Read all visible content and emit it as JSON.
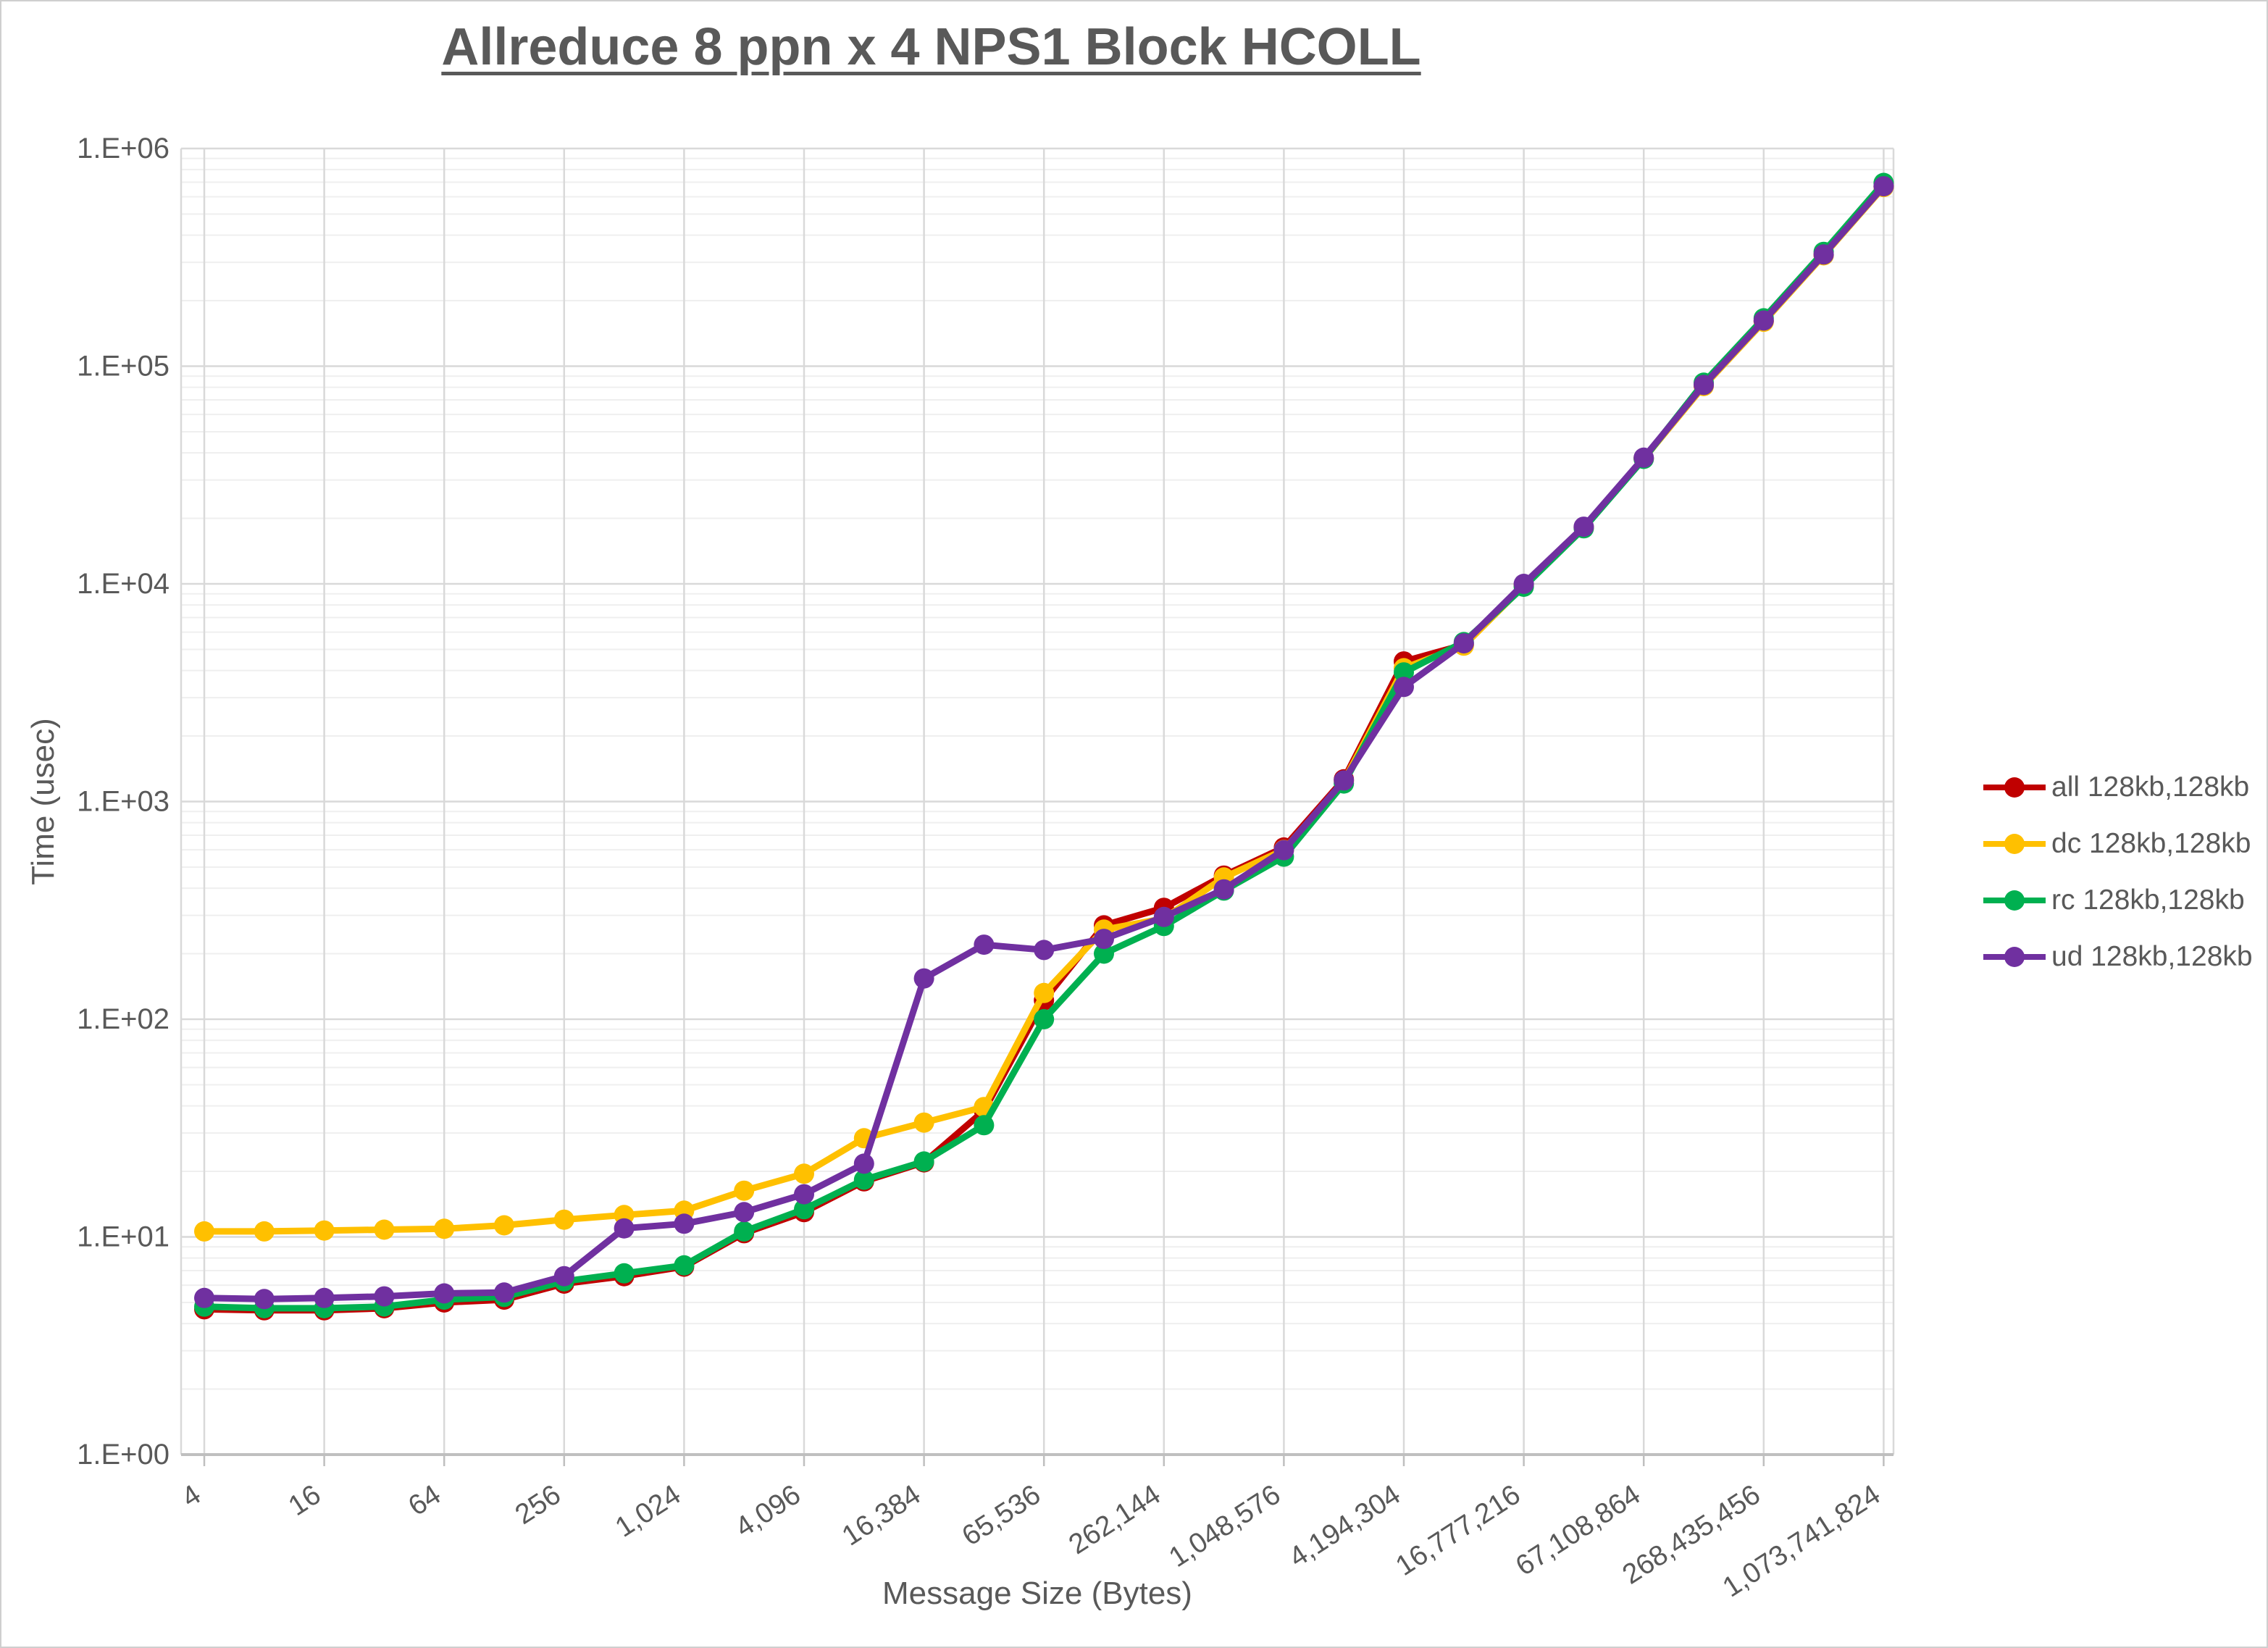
{
  "title": "Allreduce 8 ppn x 4 NPS1 Block HCOLL",
  "axes": {
    "x_label": "Message Size (Bytes)",
    "y_label": "Time (usec)",
    "x_ticks": [
      "4",
      "16",
      "64",
      "256",
      "1,024",
      "4,096",
      "16,384",
      "65,536",
      "262,144",
      "1,048,576",
      "4,194,304",
      "16,777,216",
      "67,108,864",
      "268,435,456",
      "1,073,741,824"
    ],
    "y_ticks": [
      "1.E+00",
      "1.E+01",
      "1.E+02",
      "1.E+03",
      "1.E+04",
      "1.E+05",
      "1.E+06"
    ]
  },
  "legend": [
    {
      "label": "all 128kb,128kb",
      "color": "#C00000"
    },
    {
      "label": "dc 128kb,128kb",
      "color": "#FFC000"
    },
    {
      "label": "rc 128kb,128kb",
      "color": "#00B050"
    },
    {
      "label": "ud 128kb,128kb",
      "color": "#7030A0"
    }
  ],
  "chart_data": {
    "type": "line",
    "title": "Allreduce 8 ppn x 4 NPS1 Block HCOLL",
    "xlabel": "Message Size (Bytes)",
    "ylabel": "Time (usec)",
    "x_scale": "log2",
    "y_scale": "log10",
    "ylim": [
      1,
      1000000
    ],
    "xlim": [
      4,
      1073741824
    ],
    "grid": {
      "major_color": "#D9D9D9",
      "minor_color": "#EFEFEF",
      "axis_color": "#BFBFBF"
    },
    "text_color": "#595959",
    "x": [
      4,
      8,
      16,
      32,
      64,
      128,
      256,
      512,
      1024,
      2048,
      4096,
      8192,
      16384,
      32768,
      65536,
      131072,
      262144,
      524288,
      1048576,
      2097152,
      4194304,
      8388608,
      16777216,
      33554432,
      67108864,
      134217728,
      268435456,
      536870912,
      1073741824
    ],
    "series": [
      {
        "name": "all 128kb,128kb",
        "color": "#C00000",
        "values": [
          4.65,
          4.6,
          4.6,
          4.7,
          5.0,
          5.15,
          6.1,
          6.6,
          7.3,
          10.4,
          13.0,
          18.0,
          22.0,
          38.0,
          122,
          270,
          325,
          457,
          615,
          1265,
          4400,
          5250,
          9900,
          18200,
          37800,
          81500,
          161000,
          324000,
          668000
        ]
      },
      {
        "name": "dc 128kb,128kb",
        "color": "#FFC000",
        "values": [
          10.6,
          10.6,
          10.7,
          10.8,
          10.9,
          11.3,
          12.0,
          12.6,
          13.2,
          16.3,
          19.5,
          28.4,
          33.5,
          39.5,
          132,
          258,
          290,
          448,
          600,
          1240,
          4100,
          5200,
          9800,
          18100,
          37600,
          81000,
          160000,
          323000,
          665000
        ]
      },
      {
        "name": "rc 128kb,128kb",
        "color": "#00B050",
        "values": [
          4.78,
          4.7,
          4.7,
          4.79,
          5.15,
          5.3,
          6.25,
          6.8,
          7.4,
          10.6,
          13.4,
          18.3,
          22.2,
          32.6,
          100,
          200,
          268,
          390,
          558,
          1210,
          3920,
          5400,
          9700,
          18000,
          37500,
          84000,
          166000,
          335000,
          695000
        ]
      },
      {
        "name": "ud 128kb,128kb",
        "color": "#7030A0",
        "values": [
          5.24,
          5.18,
          5.24,
          5.33,
          5.5,
          5.55,
          6.6,
          10.95,
          11.5,
          13.0,
          15.7,
          21.7,
          154,
          220,
          208,
          234,
          295,
          395,
          598,
          1250,
          3360,
          5330,
          10000,
          18300,
          38000,
          82000,
          162000,
          326000,
          671000
        ]
      }
    ]
  }
}
